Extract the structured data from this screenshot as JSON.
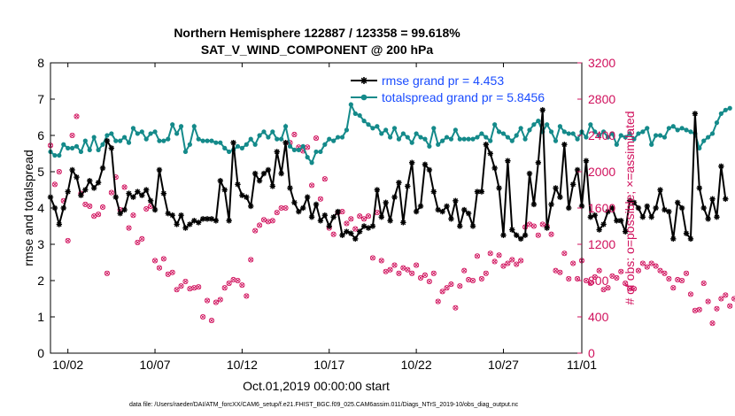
{
  "title_line1": "Northern Hemisphere 122887 / 123358 = 99.618%",
  "title_line2": "SAT_V_WIND_COMPONENT @ 200 hPa",
  "footer": "data file: /Users/raeder/DAI/ATM_forcXX/CAM6_setup/f.e21.FHIST_BGC.f09_025.CAM6assim.011/Diags_NTrS_2019-10/obs_diag_output.nc",
  "colors": {
    "rmse": "#000000",
    "spread": "#148a8a",
    "obs": "#d0105c",
    "legend_text": "#1a4cff",
    "right_axis": "#d0105c"
  },
  "chart_data": {
    "type": "line",
    "xlabel": "Oct.01,2019 00:00:00 start",
    "ylabel_left": "rmse and totalspread",
    "ylabel_right": "# of obs: o=possible; ×=assimilated",
    "xlim": [
      0.5,
      31.0
    ],
    "ylim_left": [
      0,
      8
    ],
    "ylim_right": [
      0,
      3200
    ],
    "x_ticks": [
      1.5,
      6.5,
      11.5,
      16.5,
      21.5,
      26.5,
      31.0
    ],
    "x_tick_labels": [
      "10/02",
      "10/07",
      "10/12",
      "10/17",
      "10/22",
      "10/27",
      "11/01"
    ],
    "y_ticks_left": [
      "0",
      "1",
      "2",
      "3",
      "4",
      "5",
      "6",
      "7",
      "8"
    ],
    "y_ticks_right": [
      "0",
      "400",
      "800",
      "1200",
      "1600",
      "2000",
      "2400",
      "2800",
      "3200"
    ],
    "legend_position": "top-right",
    "grid": false,
    "series": [
      {
        "name": "rmse grand pr = 4.453",
        "axis": "left",
        "x0": 0.5,
        "dx": 0.25,
        "values": [
          4.3,
          4.0,
          3.55,
          4.0,
          4.45,
          5.05,
          4.85,
          4.35,
          4.5,
          4.75,
          4.55,
          4.7,
          5.1,
          5.85,
          5.65,
          4.3,
          3.85,
          3.95,
          4.4,
          4.3,
          4.45,
          4.35,
          4.5,
          4.2,
          3.95,
          5.05,
          4.4,
          3.85,
          3.8,
          3.55,
          3.8,
          3.45,
          3.55,
          3.65,
          3.6,
          3.7,
          3.7,
          3.7,
          3.65,
          4.75,
          4.5,
          3.65,
          5.8,
          4.65,
          4.35,
          4.3,
          4.05,
          4.95,
          4.75,
          4.95,
          5.05,
          4.6,
          5.55,
          4.95,
          5.8,
          4.55,
          4.15,
          3.9,
          4.0,
          4.3,
          3.75,
          4.1,
          3.65,
          3.8,
          3.5,
          3.75,
          3.9,
          3.25,
          3.35,
          3.3,
          3.15,
          3.35,
          3.5,
          3.45,
          3.5,
          4.5,
          3.75,
          4.15,
          3.65,
          4.3,
          4.7,
          3.6,
          4.6,
          5.25,
          3.9,
          4.05,
          5.2,
          5.05,
          4.45,
          3.95,
          3.9,
          4.05,
          3.7,
          4.2,
          3.5,
          3.95,
          3.85,
          3.5,
          4.45,
          4.45,
          5.75,
          5.5,
          5.1,
          4.55,
          3.25,
          5.3,
          3.4,
          3.25,
          3.15,
          3.25,
          4.95,
          4.1,
          5.25,
          6.7,
          3.45,
          4.1,
          4.55,
          4.3,
          5.75,
          4.0,
          4.65,
          5.05,
          4.05,
          5.3,
          3.75,
          3.8,
          3.4,
          3.55,
          3.9,
          4.0,
          3.65,
          3.65,
          3.35,
          4.2,
          4.15,
          4.0,
          3.75,
          4.05,
          3.75,
          4.0,
          4.5,
          3.95,
          3.9,
          3.15,
          4.15,
          4.0,
          3.3,
          3.15,
          6.6,
          4.55,
          4.0,
          3.7,
          4.25,
          3.75,
          5.15,
          4.25
        ]
      },
      {
        "name": "totalspread grand pr = 5.8456",
        "axis": "left",
        "x0": 0.5,
        "dx": 0.25,
        "values": [
          5.55,
          5.45,
          5.45,
          5.75,
          5.65,
          5.65,
          5.7,
          5.55,
          5.85,
          5.6,
          5.95,
          5.6,
          5.75,
          6.0,
          6.05,
          5.85,
          5.85,
          5.95,
          5.8,
          6.2,
          6.05,
          6.1,
          5.9,
          6.05,
          6.1,
          5.85,
          5.85,
          5.9,
          6.3,
          6.05,
          6.25,
          5.55,
          5.75,
          6.25,
          5.9,
          5.85,
          5.85,
          5.85,
          5.8,
          5.8,
          5.65,
          5.55,
          5.6,
          5.7,
          5.65,
          5.75,
          5.9,
          5.75,
          6.0,
          6.1,
          5.95,
          6.1,
          5.9,
          5.9,
          6.25,
          5.7,
          5.6,
          5.6,
          5.7,
          5.4,
          5.25,
          5.55,
          5.55,
          5.75,
          5.9,
          5.85,
          5.95,
          5.95,
          6.15,
          6.85,
          6.6,
          6.55,
          6.4,
          6.3,
          6.2,
          6.25,
          6.05,
          6.15,
          5.95,
          6.2,
          5.9,
          6.05,
          5.95,
          5.8,
          6.05,
          5.95,
          5.9,
          5.7,
          6.2,
          5.75,
          5.85,
          5.95,
          5.9,
          6.15,
          5.9,
          5.9,
          5.9,
          5.9,
          5.95,
          6.05,
          5.95,
          5.85,
          6.3,
          6.1,
          6.05,
          5.95,
          5.85,
          6.0,
          6.2,
          5.9,
          6.15,
          6.3,
          6.4,
          6.1,
          6.3,
          6.1,
          5.85,
          6.25,
          6.1,
          6.05,
          6.05,
          5.9,
          6.1,
          5.95,
          6.3,
          6.1,
          6.0,
          6.1,
          5.95,
          6.05,
          5.75,
          6.0,
          5.95,
          6.05,
          5.9,
          6.05,
          6.1,
          6.2,
          5.75,
          6.0,
          6.0,
          5.95,
          6.2,
          6.25,
          6.15,
          6.2,
          6.15,
          6.1,
          6.05,
          5.65,
          5.85,
          5.95,
          6.05,
          6.35,
          6.6,
          6.7,
          6.75
        ]
      },
      {
        "name": "# of obs (possible / assimilated)",
        "axis": "right",
        "marker": "circle with x",
        "x0": 0.5,
        "dx": 0.25,
        "values": [
          2290,
          1860,
          2000,
          1680,
          1240,
          2400,
          2610,
          1760,
          1640,
          1620,
          1510,
          1530,
          1610,
          880,
          1770,
          1940,
          1580,
          1830,
          1380,
          1520,
          1220,
          1260,
          1590,
          1620,
          1020,
          940,
          1040,
          870,
          890,
          700,
          740,
          790,
          710,
          720,
          730,
          400,
          580,
          360,
          560,
          590,
          720,
          770,
          810,
          800,
          750,
          630,
          1030,
          1350,
          1410,
          1470,
          1450,
          1460,
          1550,
          1600,
          1600,
          2320,
          2410,
          2270,
          2230,
          2270,
          1850,
          2370,
          1700,
          1920,
          1380,
          1310,
          1550,
          1560,
          1430,
          1480,
          1370,
          1510,
          1480,
          1510,
          1050,
          1550,
          1020,
          900,
          920,
          970,
          880,
          940,
          920,
          880,
          970,
          830,
          860,
          790,
          880,
          570,
          680,
          720,
          760,
          500,
          740,
          910,
          810,
          800,
          1070,
          820,
          880,
          1100,
          1010,
          1080,
          960,
          990,
          1030,
          980,
          1020,
          1390,
          1420,
          1400,
          1300,
          1420,
          1400,
          1310,
          910,
          890,
          1100,
          820,
          990,
          820,
          1020,
          800,
          770,
          840,
          910,
          700,
          720,
          850,
          830,
          900,
          770,
          710,
          710,
          910,
          990,
          950,
          990,
          960,
          910,
          880,
          820,
          720,
          810,
          800,
          880,
          650,
          470,
          480,
          770,
          570,
          330,
          490,
          600,
          640,
          520,
          600,
          550,
          500,
          690,
          680
        ]
      }
    ]
  }
}
